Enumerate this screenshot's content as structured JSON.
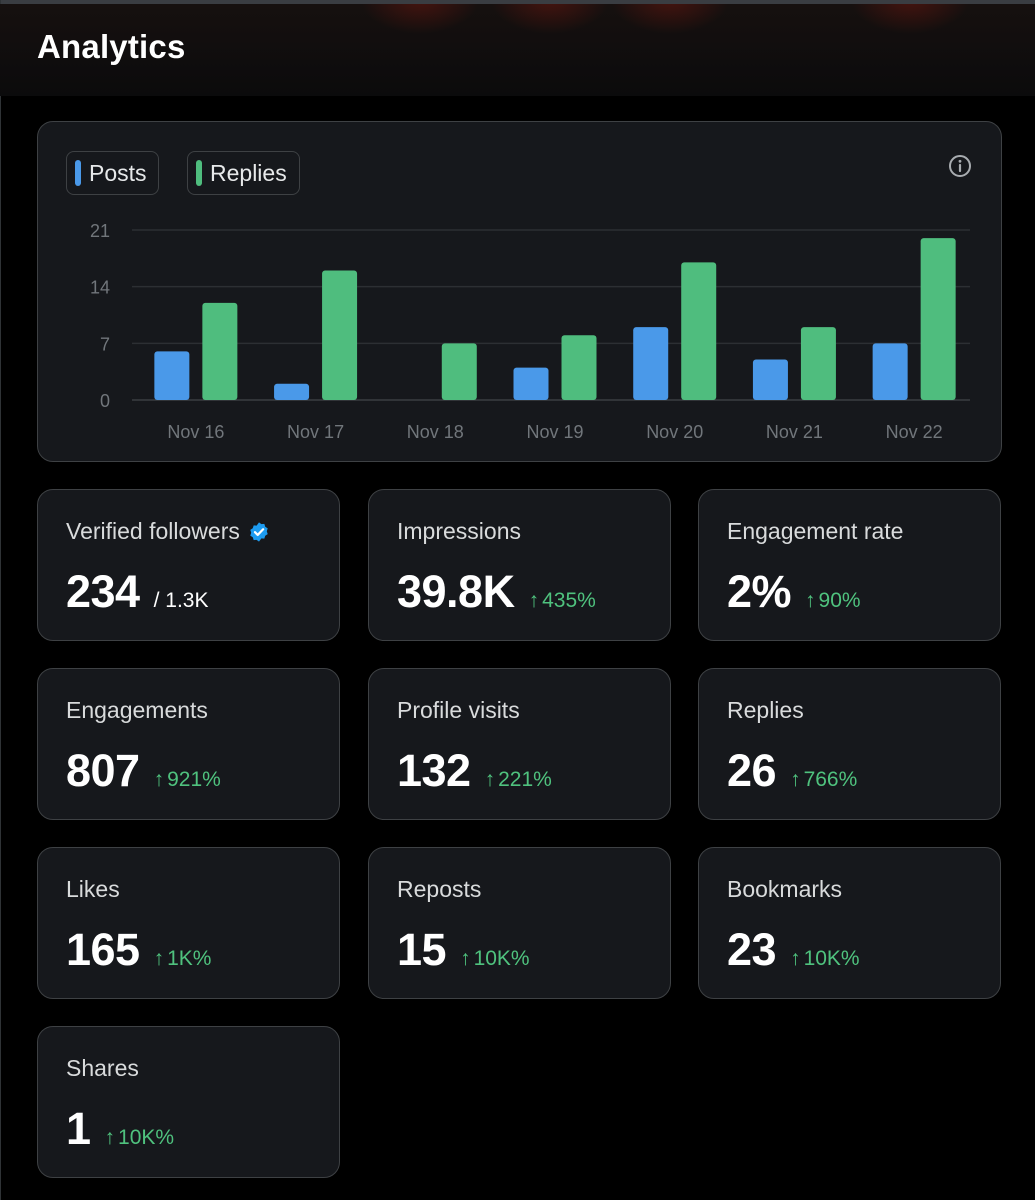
{
  "page": {
    "title": "Analytics"
  },
  "colors": {
    "posts": "#4a99e9",
    "replies": "#4fbd7e",
    "positive": "#4fc27e",
    "verified": "#1d9bf0"
  },
  "chart": {
    "legend": {
      "posts_label": "Posts",
      "replies_label": "Replies"
    },
    "info_icon": "info-circle-icon"
  },
  "chart_data": {
    "type": "bar",
    "title": "",
    "xlabel": "",
    "ylabel": "",
    "categories": [
      "Nov 16",
      "Nov 17",
      "Nov 18",
      "Nov 19",
      "Nov 20",
      "Nov 21",
      "Nov 22"
    ],
    "series": [
      {
        "name": "Posts",
        "values": [
          6,
          2,
          0,
          4,
          9,
          5,
          7
        ]
      },
      {
        "name": "Replies",
        "values": [
          12,
          16,
          7,
          8,
          17,
          9,
          20
        ]
      }
    ],
    "yticks": [
      "0",
      "7",
      "14",
      "21"
    ],
    "ylim": [
      0,
      21
    ],
    "grid": true
  },
  "stats": [
    {
      "key": "verified-followers",
      "label": "Verified followers",
      "value": "234",
      "sub": "/ 1.3K",
      "change": "",
      "verified": true,
      "icon": "verified-badge-icon"
    },
    {
      "key": "impressions",
      "label": "Impressions",
      "value": "39.8K",
      "sub": "",
      "change": "435%"
    },
    {
      "key": "engagement-rate",
      "label": "Engagement rate",
      "value": "2%",
      "sub": "",
      "change": "90%"
    },
    {
      "key": "engagements",
      "label": "Engagements",
      "value": "807",
      "sub": "",
      "change": "921%"
    },
    {
      "key": "profile-visits",
      "label": "Profile visits",
      "value": "132",
      "sub": "",
      "change": "221%"
    },
    {
      "key": "replies",
      "label": "Replies",
      "value": "26",
      "sub": "",
      "change": "766%"
    },
    {
      "key": "likes",
      "label": "Likes",
      "value": "165",
      "sub": "",
      "change": "1K%"
    },
    {
      "key": "reposts",
      "label": "Reposts",
      "value": "15",
      "sub": "",
      "change": "10K%"
    },
    {
      "key": "bookmarks",
      "label": "Bookmarks",
      "value": "23",
      "sub": "",
      "change": "10K%"
    },
    {
      "key": "shares",
      "label": "Shares",
      "value": "1",
      "sub": "",
      "change": "10K%"
    }
  ],
  "arrow_glyph": "↑"
}
